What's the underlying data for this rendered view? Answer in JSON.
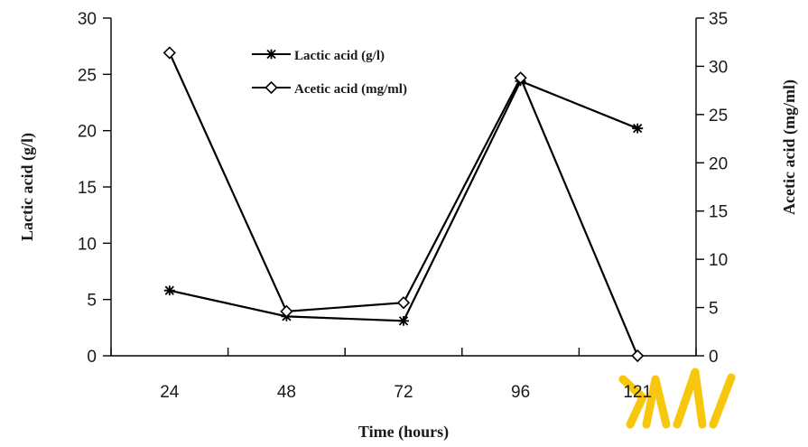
{
  "chart_data": {
    "type": "line",
    "categories": [
      "24",
      "48",
      "72",
      "96",
      "121"
    ],
    "xlabel": "Time  (hours)",
    "ylabel_left": "Lactic acid (g/l)",
    "ylabel_right": "Acetic acid (mg/ml)",
    "ylim_left": [
      0,
      30
    ],
    "yticks_left": [
      0,
      5,
      10,
      15,
      20,
      25,
      30
    ],
    "ylim_right": [
      0,
      35
    ],
    "yticks_right": [
      0,
      5,
      10,
      15,
      20,
      25,
      30,
      35
    ],
    "grid": false,
    "legend_position": "top-center",
    "series": [
      {
        "name": "Lactic acid (g/l)",
        "axis": "left",
        "marker": "asterisk",
        "values": [
          5.8,
          3.5,
          3.1,
          24.4,
          20.2
        ]
      },
      {
        "name": "Acetic acid (mg/ml)",
        "axis": "right",
        "marker": "diamond",
        "values": [
          31.4,
          4.6,
          5.5,
          28.8,
          0
        ]
      }
    ]
  },
  "colors": {
    "line": "#000000",
    "watermark": "#f5c400"
  }
}
